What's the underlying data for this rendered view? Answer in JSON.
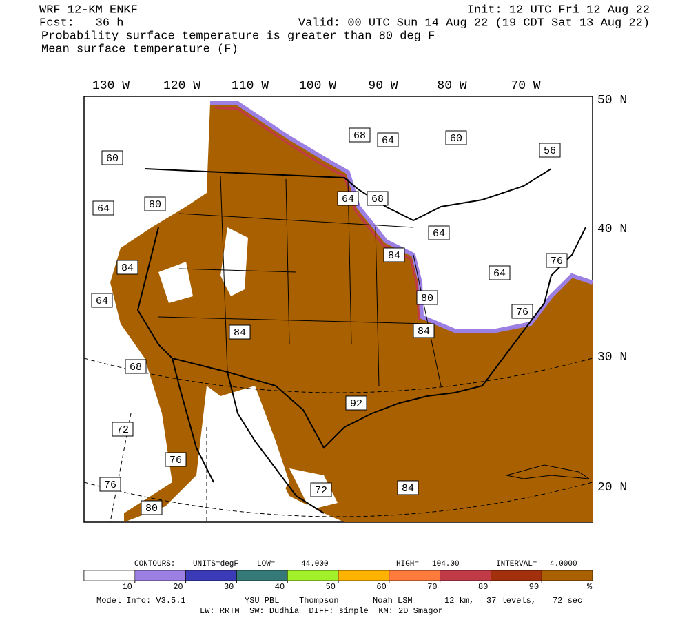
{
  "header": {
    "model": "WRF 12-KM ENKF",
    "fcst": "Fcst:   36 h",
    "init": "Init: 12 UTC Fri 12 Aug 22",
    "valid": "Valid: 00 UTC Sun 14 Aug 22 (19 CDT Sat 13 Aug 22)",
    "field1": "Probability surface temperature is greater than 80 deg F",
    "field2": "Mean surface temperature (F)"
  },
  "map": {
    "longitudes": [
      "130 W",
      "120 W",
      "110 W",
      "100 W",
      "90 W",
      "80 W",
      "70 W"
    ],
    "latitudes": [
      "50 N",
      "40 N",
      "30 N",
      "20 N"
    ],
    "contour_labels": [
      "68",
      "64",
      "60",
      "56",
      "60",
      "80",
      "64",
      "64",
      "68",
      "84",
      "64",
      "76",
      "84",
      "64",
      "64",
      "80",
      "76",
      "84",
      "84",
      "68",
      "92",
      "72",
      "76",
      "76",
      "72",
      "84",
      "80"
    ]
  },
  "colorbar": {
    "colors": [
      "#ffffff",
      "#9b7fe2",
      "#3b3bb8",
      "#357a78",
      "#a2f02a",
      "#ffb300",
      "#ff7b3c",
      "#c13a48",
      "#a3300c",
      "#a86000"
    ],
    "ticks": [
      10,
      20,
      30,
      40,
      50,
      60,
      70,
      80,
      90
    ],
    "unit": "%"
  },
  "contours": [
    "CONTOURS:",
    "UNITS=degF",
    "LOW=",
    "44.000",
    "HIGH=",
    "104.00",
    "INTERVAL=",
    "4.0000"
  ],
  "model_info": [
    "Model Info: V3.5.1",
    "YSU PBL",
    "Thompson",
    "Noah LSM",
    "12 km,",
    "37 levels,",
    "72 sec"
  ],
  "physics": "LW: RRTM  SW: Dudhia  DIFF: simple  KM: 2D Smagor"
}
